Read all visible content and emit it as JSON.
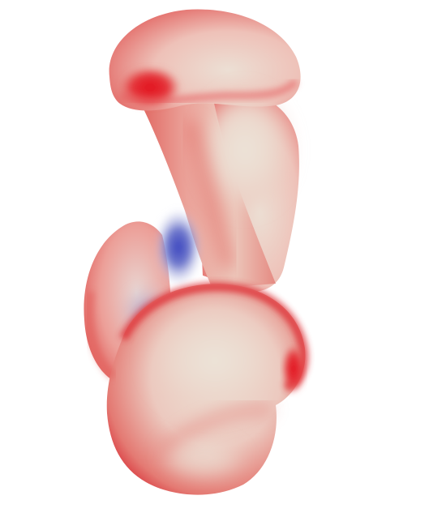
{
  "scene": {
    "subject": "colormapped-3d-surface-mesh",
    "background_color": "#ffffff",
    "colormap": {
      "high": "#e0121c",
      "mid_high": "#ee8278",
      "neutral": "#ece4da",
      "low": "#3c46c0"
    }
  }
}
